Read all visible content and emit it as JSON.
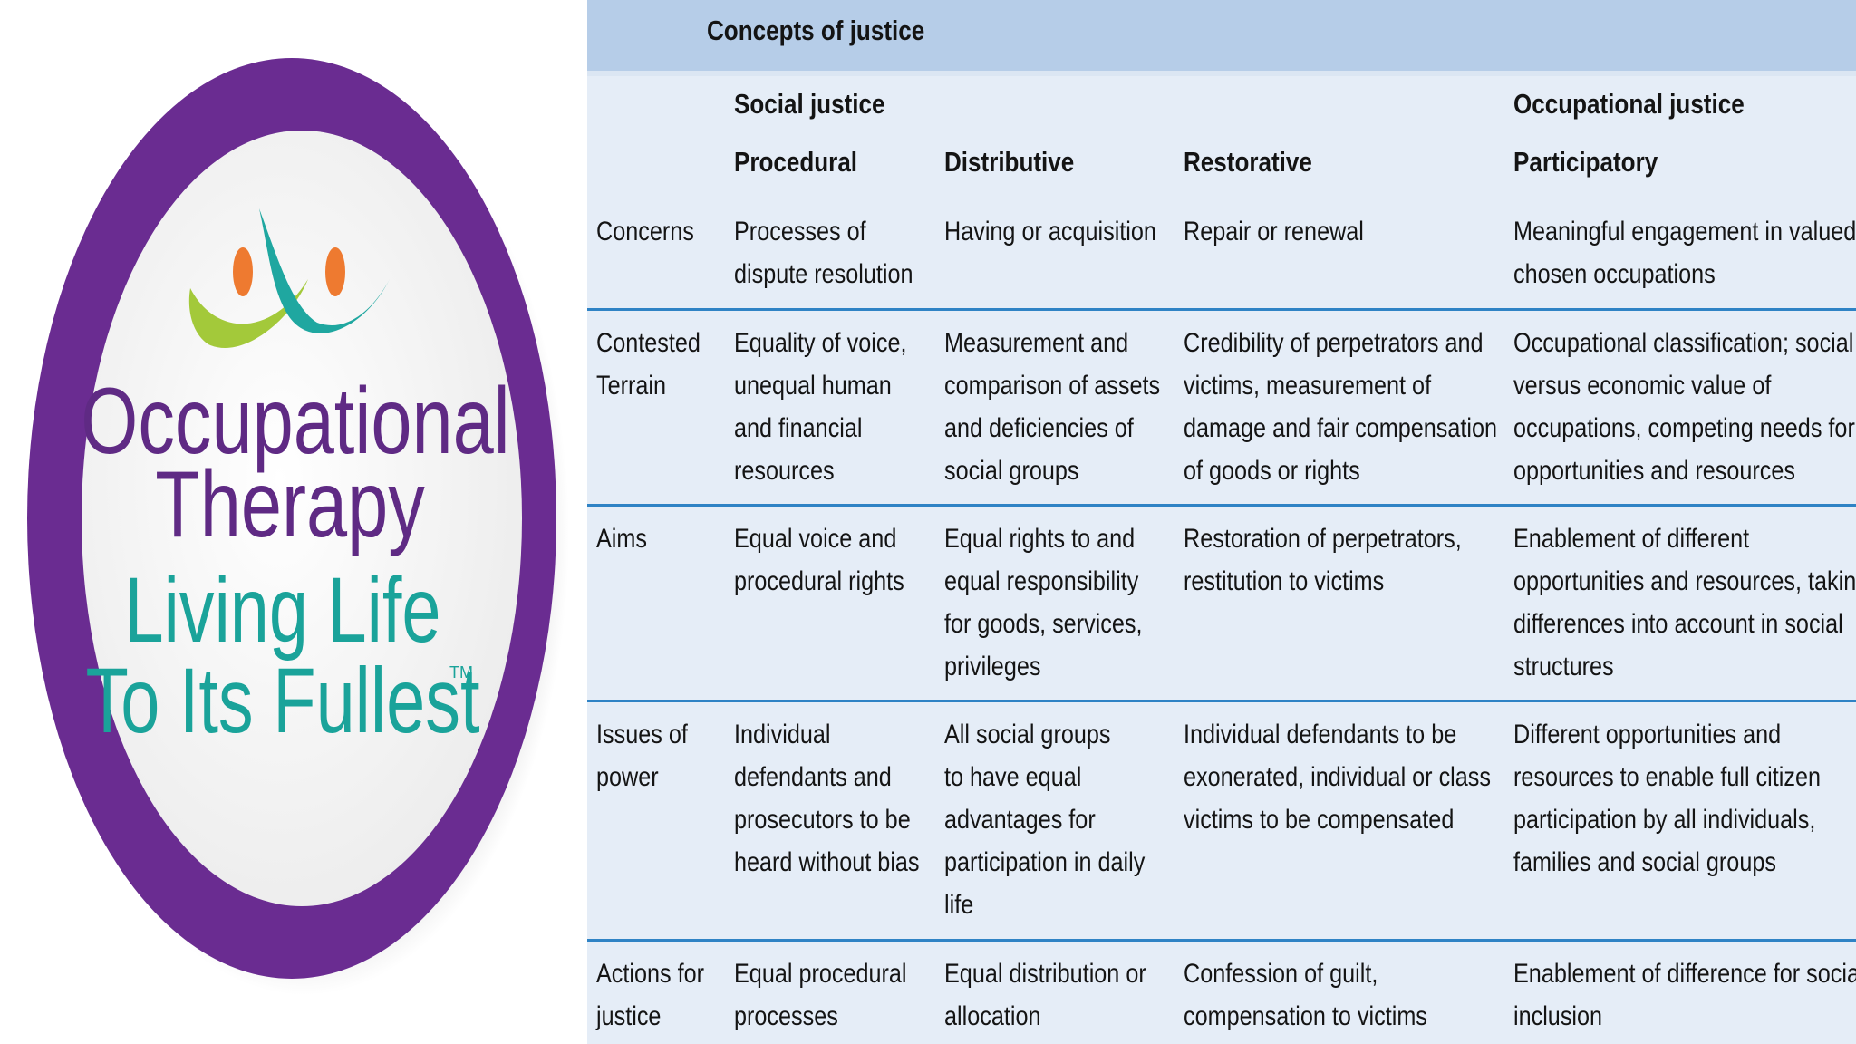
{
  "logo": {
    "line1": "Occupational",
    "line2": "Therapy",
    "line3": "Living Life",
    "line4": "To Its Fullest",
    "tm": "TM",
    "colors": {
      "ring": "#6a2c91",
      "purple_text": "#5f2a84",
      "teal_text": "#1aa39a",
      "figure_orange": "#ee7a30",
      "figure_green": "#a3c93a",
      "figure_teal": "#1fa7a0"
    }
  },
  "table": {
    "title": "Concepts of justice",
    "group_headers": {
      "social": "Social justice",
      "occupational": "Occupational justice"
    },
    "columns": [
      "Procedural",
      "Distributive",
      "Restorative",
      "Participatory"
    ],
    "rows": [
      {
        "label": [
          "Concerns"
        ],
        "cells": [
          [
            "Processes of",
            "dispute resolution"
          ],
          [
            "Having or acquisition"
          ],
          [
            "Repair or renewal"
          ],
          [
            "Meaningful engagement in valued,",
            "chosen occupations"
          ]
        ]
      },
      {
        "label": [
          "Contested",
          "Terrain"
        ],
        "cells": [
          [
            "Equality of voice,",
            "unequal human",
            "and financial",
            "resources"
          ],
          [
            "Measurement and",
            "comparison of assets",
            "and deficiencies of",
            "social groups"
          ],
          [
            "Credibility of perpetrators and",
            "victims, measurement of",
            "damage and fair compensation",
            "of goods or rights"
          ],
          [
            "Occupational classification; social",
            "versus economic value of",
            "occupations, competing needs for",
            "opportunities and resources"
          ]
        ]
      },
      {
        "label": [
          "Aims"
        ],
        "cells": [
          [
            "Equal voice and",
            "procedural rights"
          ],
          [
            "Equal rights to and",
            "equal responsibility",
            "for goods, services,",
            "privileges"
          ],
          [
            "Restoration of perpetrators,",
            "restitution to victims"
          ],
          [
            "Enablement of different",
            "opportunities and resources, taking",
            "differences into account in social",
            "structures"
          ]
        ]
      },
      {
        "label": [
          "Issues of",
          "power"
        ],
        "cells": [
          [
            "Individual",
            "defendants and",
            "prosecutors to be",
            "heard without bias"
          ],
          [
            "All social groups",
            "to have equal",
            "advantages for",
            "participation in daily",
            "life"
          ],
          [
            "Individual defendants to be",
            "exonerated, individual or class",
            "victims to be compensated"
          ],
          [
            "Different opportunities and",
            "resources to enable full citizen",
            "participation by all individuals,",
            "families and social groups"
          ]
        ]
      },
      {
        "label": [
          "Actions for",
          "justice"
        ],
        "cells": [
          [
            "Equal procedural",
            "processes"
          ],
          [
            "Equal distribution or",
            "allocation"
          ],
          [
            "Confession of guilt,",
            "compensation to victims"
          ],
          [
            "Enablement of difference for social",
            "inclusion"
          ]
        ]
      }
    ],
    "colors": {
      "title_bar": "#b6cde8",
      "body": "#e5edf7",
      "divider": "#2f83c5",
      "text": "#141414"
    }
  }
}
